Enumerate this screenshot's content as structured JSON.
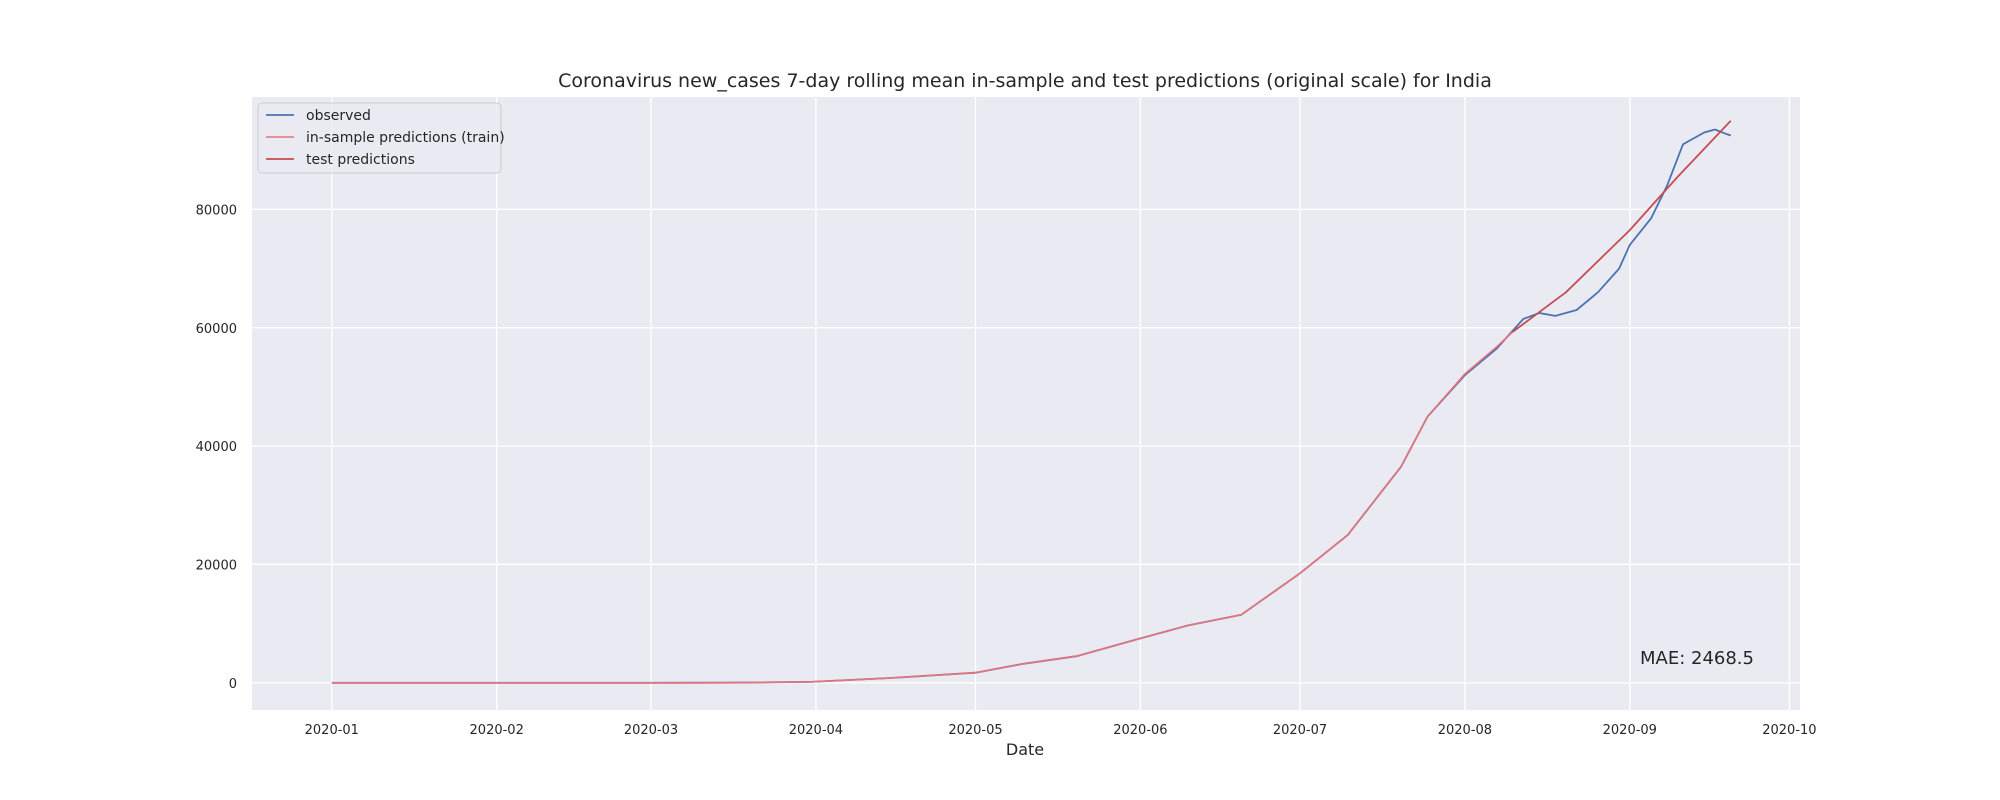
{
  "chart_data": {
    "type": "line",
    "title": "Coronavirus new_cases 7-day rolling mean in-sample and test predictions (original scale) for India",
    "xlabel": "Date",
    "ylabel": "",
    "x_ticks": [
      "2020-01",
      "2020-02",
      "2020-03",
      "2020-04",
      "2020-05",
      "2020-06",
      "2020-07",
      "2020-08",
      "2020-09",
      "2020-10"
    ],
    "x_tick_dates": [
      "2020-01-01",
      "2020-02-01",
      "2020-03-01",
      "2020-04-01",
      "2020-05-01",
      "2020-06-01",
      "2020-07-01",
      "2020-08-01",
      "2020-09-01",
      "2020-10-01"
    ],
    "xlim": [
      "2019-12-17",
      "2020-10-03"
    ],
    "y_ticks": [
      0,
      20000,
      40000,
      60000,
      80000
    ],
    "y_tick_labels": [
      "0",
      "20000",
      "40000",
      "60000",
      "80000"
    ],
    "ylim": [
      -4600,
      99000
    ],
    "grid": true,
    "legend_position": "top-left",
    "annotation": "MAE: 2468.5",
    "colors": {
      "background": "#eaeaf2",
      "grid": "#ffffff",
      "observed": "#4c72b0",
      "train": "#e8737a",
      "test": "#c44e52"
    },
    "series": [
      {
        "name": "observed",
        "color": "#4c72b0",
        "points": [
          [
            "2020-01-01",
            0
          ],
          [
            "2020-02-01",
            0
          ],
          [
            "2020-03-01",
            0
          ],
          [
            "2020-03-15",
            20
          ],
          [
            "2020-03-31",
            150
          ],
          [
            "2020-04-15",
            800
          ],
          [
            "2020-05-01",
            1700
          ],
          [
            "2020-05-10",
            3200
          ],
          [
            "2020-05-20",
            4500
          ],
          [
            "2020-06-01",
            7500
          ],
          [
            "2020-06-10",
            9700
          ],
          [
            "2020-06-20",
            11500
          ],
          [
            "2020-07-01",
            18500
          ],
          [
            "2020-07-10",
            25000
          ],
          [
            "2020-07-20",
            36500
          ],
          [
            "2020-07-25",
            45000
          ],
          [
            "2020-08-01",
            52000
          ],
          [
            "2020-08-07",
            56500
          ],
          [
            "2020-08-10",
            59500
          ],
          [
            "2020-08-12",
            61500
          ],
          [
            "2020-08-15",
            62500
          ],
          [
            "2020-08-18",
            62000
          ],
          [
            "2020-08-22",
            63000
          ],
          [
            "2020-08-26",
            66000
          ],
          [
            "2020-08-30",
            70000
          ],
          [
            "2020-09-01",
            74000
          ],
          [
            "2020-09-05",
            78500
          ],
          [
            "2020-09-08",
            84000
          ],
          [
            "2020-09-11",
            91000
          ],
          [
            "2020-09-13",
            92000
          ],
          [
            "2020-09-15",
            93000
          ],
          [
            "2020-09-17",
            93500
          ],
          [
            "2020-09-19",
            92800
          ],
          [
            "2020-09-20",
            92500
          ]
        ]
      },
      {
        "name": "in-sample predictions (train)",
        "color": "#e8737a",
        "points": [
          [
            "2020-01-01",
            0
          ],
          [
            "2020-02-01",
            0
          ],
          [
            "2020-03-01",
            0
          ],
          [
            "2020-03-15",
            20
          ],
          [
            "2020-03-31",
            150
          ],
          [
            "2020-04-15",
            800
          ],
          [
            "2020-05-01",
            1700
          ],
          [
            "2020-05-10",
            3200
          ],
          [
            "2020-05-20",
            4500
          ],
          [
            "2020-06-01",
            7500
          ],
          [
            "2020-06-10",
            9700
          ],
          [
            "2020-06-20",
            11500
          ],
          [
            "2020-07-01",
            18500
          ],
          [
            "2020-07-10",
            25000
          ],
          [
            "2020-07-20",
            36500
          ],
          [
            "2020-07-25",
            45000
          ],
          [
            "2020-08-01",
            52200
          ],
          [
            "2020-08-07",
            56800
          ],
          [
            "2020-08-10",
            59300
          ]
        ]
      },
      {
        "name": "test predictions",
        "color": "#c44e52",
        "points": [
          [
            "2020-08-10",
            59300
          ],
          [
            "2020-08-20",
            66000
          ],
          [
            "2020-09-01",
            76500
          ],
          [
            "2020-09-10",
            85500
          ],
          [
            "2020-09-20",
            95000
          ]
        ]
      }
    ]
  }
}
